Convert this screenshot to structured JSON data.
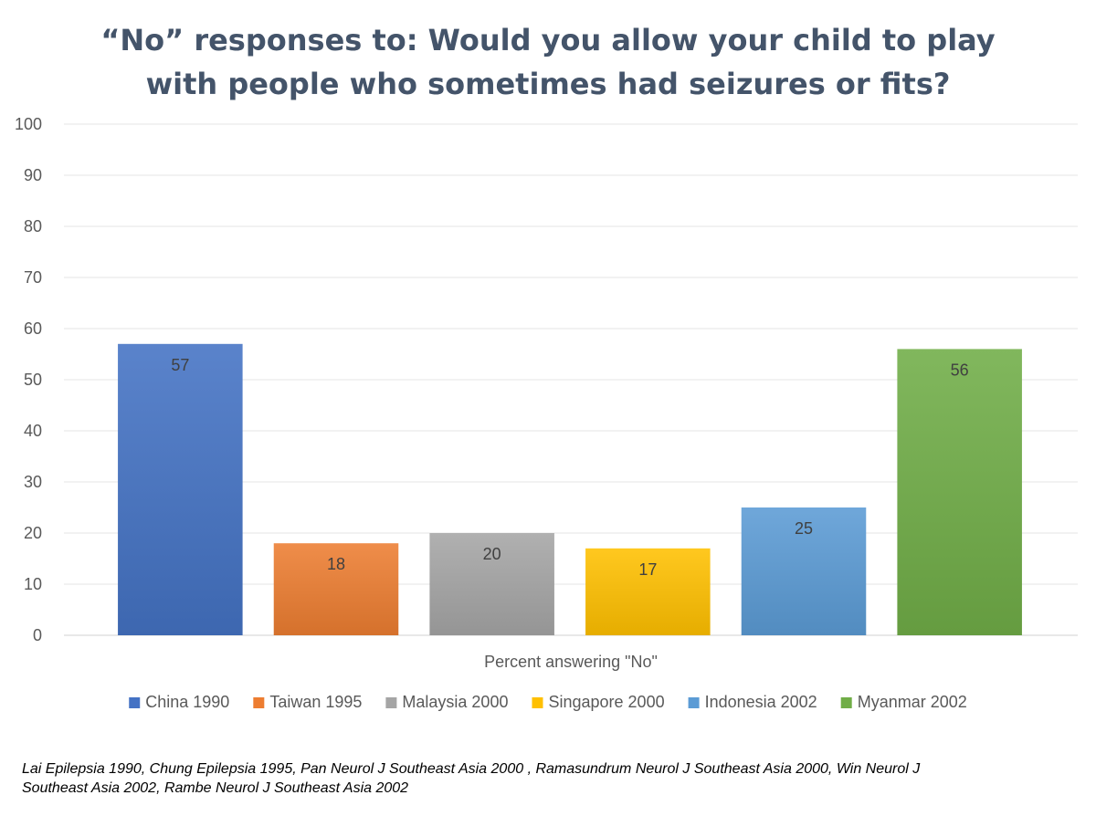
{
  "chart_data": {
    "type": "bar",
    "title_lines": [
      "“No” responses to: Would you allow your child to play",
      "with people who sometimes had seizures or fits?"
    ],
    "categories": [
      "Percent answering \"No\""
    ],
    "xlabel": "Percent answering \"No\"",
    "ylabel": "",
    "ylim": [
      0,
      100
    ],
    "yticks": [
      "0",
      "10",
      "20",
      "30",
      "40",
      "50",
      "60",
      "70",
      "80",
      "90",
      "100"
    ],
    "grid": true,
    "legend_position": "bottom",
    "data_labels": true,
    "series": [
      {
        "name": "China 1990",
        "values": [
          57
        ],
        "color": "#4472c4"
      },
      {
        "name": "Taiwan 1995",
        "values": [
          18
        ],
        "color": "#ed7d31"
      },
      {
        "name": "Malaysia 2000",
        "values": [
          20
        ],
        "color": "#a5a5a5"
      },
      {
        "name": "Singapore 2000",
        "values": [
          17
        ],
        "color": "#ffc000"
      },
      {
        "name": "Indonesia 2002",
        "values": [
          25
        ],
        "color": "#5b9bd5"
      },
      {
        "name": "Myanmar 2002",
        "values": [
          56
        ],
        "color": "#70ad47"
      }
    ]
  },
  "citation": {
    "line1": "Lai Epilepsia 1990,  Chung Epilepsia 1995,  Pan Neurol J Southeast Asia 2000 , Ramasundrum Neurol J Southeast Asia 2000,  Win Neurol J",
    "line2": "Southeast Asia 2002,  Rambe Neurol J Southeast Asia 2002"
  }
}
